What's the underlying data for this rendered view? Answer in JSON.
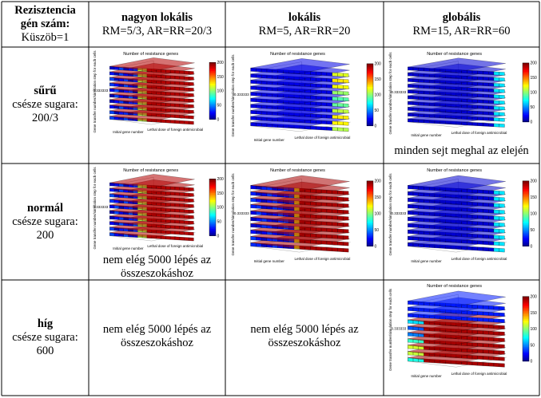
{
  "corner": {
    "line1": "Rezisztencia",
    "line2": "gén szám:",
    "line3": "Küszöb=1"
  },
  "columns": [
    {
      "title": "nagyon lokális",
      "params": "RM=5/3, AR=RR=20/3"
    },
    {
      "title": "lokális",
      "params": "RM=5, AR=RR=20"
    },
    {
      "title": "globális",
      "params": "RM=15, AR=RR=60"
    }
  ],
  "rows": [
    {
      "title": "sűrű",
      "line2": "csésze sugara:",
      "line3": "200/3"
    },
    {
      "title": "normál",
      "line2": "csésze sugara:",
      "line3": "200"
    },
    {
      "title": "híg",
      "line2": "csésze sugara:",
      "line3": "600"
    }
  ],
  "notes": {
    "r1c3": "minden sejt meghal az elején",
    "r2c1_line1": "nem elég 5000 lépés az",
    "r2c1_line2": "összeszokáshoz",
    "r3c1_line1": "nem elég 5000 lépés az",
    "r3c1_line2": "összeszokáshoz",
    "r3c2_line1": "nem elég 5000 lépés az",
    "r3c2_line2": "összeszokáshoz"
  },
  "plot": {
    "title": "Number of resistance genes",
    "zlabel": "Gene transfer number/simulation step for each cells",
    "xlabel": "Initial gene number",
    "ylabel": "Lethal dose of foreign antimicrobial",
    "z_tick": "0.333333",
    "colorbar_ticks": [
      "200",
      "150",
      "100",
      "50",
      "0"
    ],
    "colors": {
      "low": "#00008f",
      "mid": "#00ffff",
      "high": "#ff0000",
      "yellow": "#ffff00"
    }
  }
}
